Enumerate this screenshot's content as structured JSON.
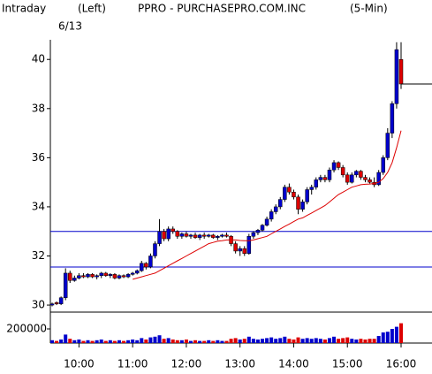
{
  "chart_data": {
    "type": "candlestick",
    "title_parts": [
      "Intraday",
      "(Left)",
      "PPRO - PURCHASEPRO.COM.INC",
      "(5-Min)"
    ],
    "subtitle": "6/13",
    "categories": [
      null,
      null,
      null,
      null,
      null,
      null,
      "10:00",
      null,
      null,
      null,
      null,
      null,
      null,
      null,
      null,
      null,
      null,
      null,
      "11:00",
      null,
      null,
      null,
      null,
      null,
      null,
      null,
      null,
      null,
      null,
      null,
      "12:00",
      null,
      null,
      null,
      null,
      null,
      null,
      null,
      null,
      null,
      null,
      null,
      "13:00",
      null,
      null,
      null,
      null,
      null,
      null,
      null,
      null,
      null,
      null,
      null,
      "14:00",
      null,
      null,
      null,
      null,
      null,
      null,
      null,
      null,
      null,
      null,
      null,
      "15:00",
      null,
      null,
      null,
      null,
      null,
      null,
      null,
      null,
      null,
      null,
      null,
      "16:00"
    ],
    "ohlc": [
      [
        30.0,
        30.1,
        29.95,
        30.05
      ],
      [
        30.1,
        30.15,
        30.0,
        30.05
      ],
      [
        30.05,
        30.35,
        30.0,
        30.3
      ],
      [
        30.3,
        31.5,
        30.2,
        31.3
      ],
      [
        31.3,
        31.4,
        30.9,
        31.0
      ],
      [
        31.0,
        31.2,
        30.95,
        31.1
      ],
      [
        31.1,
        31.3,
        31.05,
        31.2
      ],
      [
        31.2,
        31.3,
        31.1,
        31.15
      ],
      [
        31.15,
        31.3,
        31.1,
        31.25
      ],
      [
        31.25,
        31.3,
        31.1,
        31.15
      ],
      [
        31.15,
        31.25,
        31.05,
        31.2
      ],
      [
        31.2,
        31.35,
        31.1,
        31.3
      ],
      [
        31.3,
        31.35,
        31.15,
        31.2
      ],
      [
        31.2,
        31.3,
        31.1,
        31.25
      ],
      [
        31.25,
        31.3,
        31.05,
        31.1
      ],
      [
        31.1,
        31.25,
        31.05,
        31.2
      ],
      [
        31.2,
        31.25,
        31.1,
        31.15
      ],
      [
        31.15,
        31.3,
        31.1,
        31.25
      ],
      [
        31.25,
        31.35,
        31.2,
        31.3
      ],
      [
        31.3,
        31.45,
        31.25,
        31.4
      ],
      [
        31.4,
        31.8,
        31.35,
        31.7
      ],
      [
        31.7,
        31.75,
        31.45,
        31.55
      ],
      [
        31.55,
        32.1,
        31.5,
        32.0
      ],
      [
        32.0,
        32.6,
        31.9,
        32.5
      ],
      [
        32.5,
        33.5,
        32.4,
        33.0
      ],
      [
        33.0,
        33.1,
        32.6,
        32.7
      ],
      [
        32.7,
        33.2,
        32.6,
        33.1
      ],
      [
        33.1,
        33.2,
        32.9,
        33.0
      ],
      [
        33.0,
        33.05,
        32.7,
        32.8
      ],
      [
        32.8,
        32.95,
        32.7,
        32.9
      ],
      [
        32.9,
        33.0,
        32.75,
        32.8
      ],
      [
        32.8,
        32.9,
        32.7,
        32.85
      ],
      [
        32.85,
        32.95,
        32.7,
        32.75
      ],
      [
        32.75,
        32.9,
        32.65,
        32.85
      ],
      [
        32.85,
        32.95,
        32.7,
        32.8
      ],
      [
        32.8,
        32.9,
        32.75,
        32.85
      ],
      [
        32.85,
        32.9,
        32.7,
        32.75
      ],
      [
        32.75,
        32.85,
        32.65,
        32.8
      ],
      [
        32.8,
        32.9,
        32.75,
        32.85
      ],
      [
        32.85,
        32.95,
        32.75,
        32.8
      ],
      [
        32.8,
        32.85,
        32.4,
        32.5
      ],
      [
        32.5,
        32.6,
        32.1,
        32.2
      ],
      [
        32.2,
        32.4,
        32.0,
        32.3
      ],
      [
        32.3,
        32.4,
        32.0,
        32.1
      ],
      [
        32.1,
        32.9,
        32.05,
        32.8
      ],
      [
        32.8,
        33.0,
        32.7,
        32.95
      ],
      [
        32.95,
        33.1,
        32.85,
        33.05
      ],
      [
        33.05,
        33.3,
        33.0,
        33.25
      ],
      [
        33.25,
        33.6,
        33.2,
        33.5
      ],
      [
        33.5,
        33.9,
        33.4,
        33.8
      ],
      [
        33.8,
        34.1,
        33.7,
        34.0
      ],
      [
        34.0,
        34.4,
        33.9,
        34.3
      ],
      [
        34.3,
        34.9,
        34.2,
        34.8
      ],
      [
        34.8,
        34.95,
        34.5,
        34.6
      ],
      [
        34.6,
        34.7,
        34.3,
        34.4
      ],
      [
        34.4,
        34.5,
        33.7,
        33.9
      ],
      [
        33.9,
        34.3,
        33.8,
        34.2
      ],
      [
        34.2,
        34.8,
        34.1,
        34.7
      ],
      [
        34.7,
        34.9,
        34.5,
        34.8
      ],
      [
        34.8,
        35.2,
        34.7,
        35.1
      ],
      [
        35.1,
        35.3,
        35.0,
        35.2
      ],
      [
        35.2,
        35.3,
        35.0,
        35.1
      ],
      [
        35.1,
        35.6,
        35.0,
        35.5
      ],
      [
        35.5,
        35.9,
        35.4,
        35.8
      ],
      [
        35.8,
        35.85,
        35.5,
        35.6
      ],
      [
        35.6,
        35.7,
        35.2,
        35.3
      ],
      [
        35.3,
        35.4,
        34.9,
        35.0
      ],
      [
        35.0,
        35.4,
        34.95,
        35.3
      ],
      [
        35.3,
        35.5,
        35.2,
        35.45
      ],
      [
        35.45,
        35.5,
        35.1,
        35.2
      ],
      [
        35.2,
        35.3,
        35.0,
        35.1
      ],
      [
        35.1,
        35.2,
        34.95,
        35.0
      ],
      [
        35.0,
        35.2,
        34.8,
        34.9
      ],
      [
        34.9,
        35.5,
        34.85,
        35.4
      ],
      [
        35.4,
        36.1,
        35.3,
        36.0
      ],
      [
        36.0,
        37.2,
        35.9,
        37.0
      ],
      [
        37.0,
        38.3,
        36.8,
        38.2
      ],
      [
        38.2,
        40.7,
        38.0,
        40.4
      ],
      [
        40.0,
        40.7,
        38.8,
        39.0
      ]
    ],
    "moving_average": {
      "color": "#dd0000",
      "values": [
        null,
        null,
        null,
        null,
        null,
        null,
        null,
        null,
        null,
        null,
        null,
        null,
        null,
        null,
        null,
        null,
        null,
        null,
        31.05,
        31.1,
        31.15,
        31.2,
        31.25,
        31.3,
        31.4,
        31.5,
        31.6,
        31.7,
        31.8,
        31.9,
        32.0,
        32.1,
        32.2,
        32.3,
        32.4,
        32.5,
        32.55,
        32.6,
        32.62,
        32.65,
        32.65,
        32.65,
        32.63,
        32.62,
        32.62,
        32.65,
        32.7,
        32.75,
        32.8,
        32.9,
        33.0,
        33.1,
        33.2,
        33.3,
        33.4,
        33.5,
        33.55,
        33.65,
        33.75,
        33.85,
        33.95,
        34.05,
        34.2,
        34.35,
        34.5,
        34.6,
        34.7,
        34.8,
        34.85,
        34.9,
        34.92,
        34.93,
        34.95,
        35.0,
        35.15,
        35.4,
        35.8,
        36.4,
        37.1
      ]
    },
    "up_color": "#0000cc",
    "down_color": "#dd0000",
    "hlines": {
      "color": "#0000cc",
      "values": [
        33.0,
        31.55
      ]
    },
    "ylim": [
      29.75,
      40.8
    ],
    "yticks": [
      30,
      32,
      34,
      36,
      38,
      40
    ],
    "volume": {
      "values": [
        40000,
        30000,
        50000,
        120000,
        60000,
        40000,
        50000,
        30000,
        40000,
        30000,
        40000,
        50000,
        30000,
        40000,
        30000,
        40000,
        30000,
        40000,
        50000,
        40000,
        70000,
        50000,
        80000,
        90000,
        110000,
        60000,
        70000,
        50000,
        40000,
        40000,
        50000,
        30000,
        40000,
        30000,
        30000,
        40000,
        30000,
        40000,
        30000,
        30000,
        60000,
        70000,
        50000,
        60000,
        90000,
        60000,
        50000,
        60000,
        70000,
        80000,
        60000,
        70000,
        90000,
        60000,
        50000,
        80000,
        60000,
        70000,
        60000,
        70000,
        60000,
        50000,
        70000,
        90000,
        60000,
        70000,
        80000,
        60000,
        50000,
        60000,
        50000,
        60000,
        60000,
        100000,
        150000,
        160000,
        200000,
        230000,
        280000
      ],
      "ylim": [
        0,
        400000
      ],
      "yticks": [
        200000
      ]
    }
  }
}
